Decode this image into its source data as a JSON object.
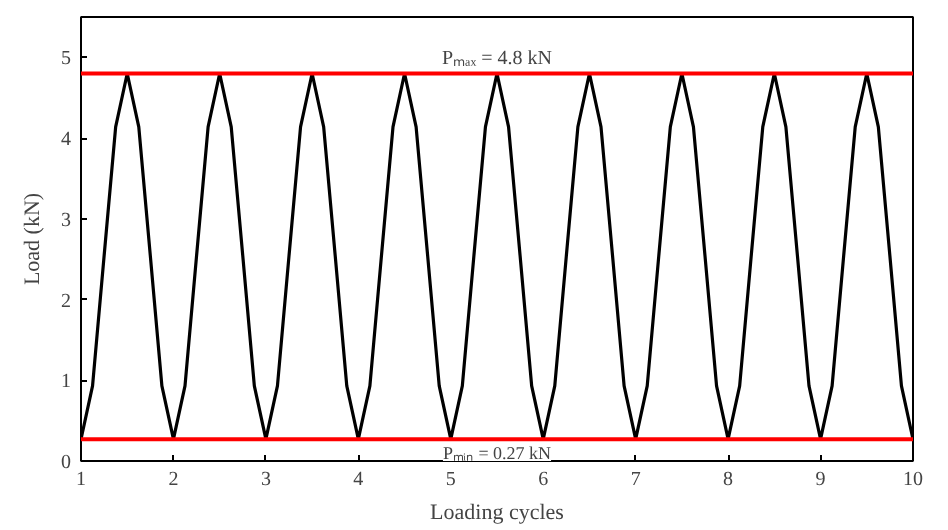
{
  "chart_data": {
    "type": "line",
    "xlabel": "Loading cycles",
    "ylabel": "Load (kN)",
    "x": [
      1,
      1.125,
      1.25,
      1.375,
      1.5,
      1.625,
      1.75,
      1.875,
      2,
      2.125,
      2.25,
      2.375,
      2.5,
      2.625,
      2.75,
      2.875,
      3,
      3.125,
      3.25,
      3.375,
      3.5,
      3.625,
      3.75,
      3.875,
      4,
      4.125,
      4.25,
      4.375,
      4.5,
      4.625,
      4.75,
      4.875,
      5,
      5.125,
      5.25,
      5.375,
      5.5,
      5.625,
      5.75,
      5.875,
      6,
      6.125,
      6.25,
      6.375,
      6.5,
      6.625,
      6.75,
      6.875,
      7,
      7.125,
      7.25,
      7.375,
      7.5,
      7.625,
      7.75,
      7.875,
      8,
      8.125,
      8.25,
      8.375,
      8.5,
      8.625,
      8.75,
      8.875,
      9,
      9.125,
      9.25,
      9.375,
      9.5,
      9.625,
      9.75,
      9.875,
      10
    ],
    "series": [
      {
        "color": "#000000",
        "values": [
          0.27,
          0.93,
          2.54,
          4.14,
          4.8,
          4.14,
          2.54,
          0.93,
          0.27,
          0.93,
          2.54,
          4.14,
          4.8,
          4.14,
          2.54,
          0.93,
          0.27,
          0.93,
          2.54,
          4.14,
          4.8,
          4.14,
          2.54,
          0.93,
          0.27,
          0.93,
          2.54,
          4.14,
          4.8,
          4.14,
          2.54,
          0.93,
          0.27,
          0.93,
          2.54,
          4.14,
          4.8,
          4.14,
          2.54,
          0.93,
          0.27,
          0.93,
          2.54,
          4.14,
          4.8,
          4.14,
          2.54,
          0.93,
          0.27,
          0.93,
          2.54,
          4.14,
          4.8,
          4.14,
          2.54,
          0.93,
          0.27,
          0.93,
          2.54,
          4.14,
          4.8,
          4.14,
          2.54,
          0.93,
          0.27,
          0.93,
          2.54,
          4.14,
          4.8,
          4.14,
          2.54,
          0.93,
          0.27
        ]
      }
    ],
    "xlim": [
      1,
      10
    ],
    "xticks": [
      1,
      2,
      3,
      4,
      5,
      6,
      7,
      8,
      9,
      10
    ],
    "ylim": [
      0,
      5.5
    ],
    "yticks": [
      0,
      1,
      2,
      3,
      4,
      5
    ],
    "ref_lines": [
      {
        "axis": "y",
        "value": 4.8,
        "label": "Pₘₐₓ = 4.8 kN",
        "color": "#ff0000"
      },
      {
        "axis": "y",
        "value": 0.27,
        "label": "Pₘᵢₙ = 0.27 kN",
        "color": "#ff0000"
      }
    ],
    "grid": false,
    "line_style": "solid",
    "marker": "none"
  }
}
